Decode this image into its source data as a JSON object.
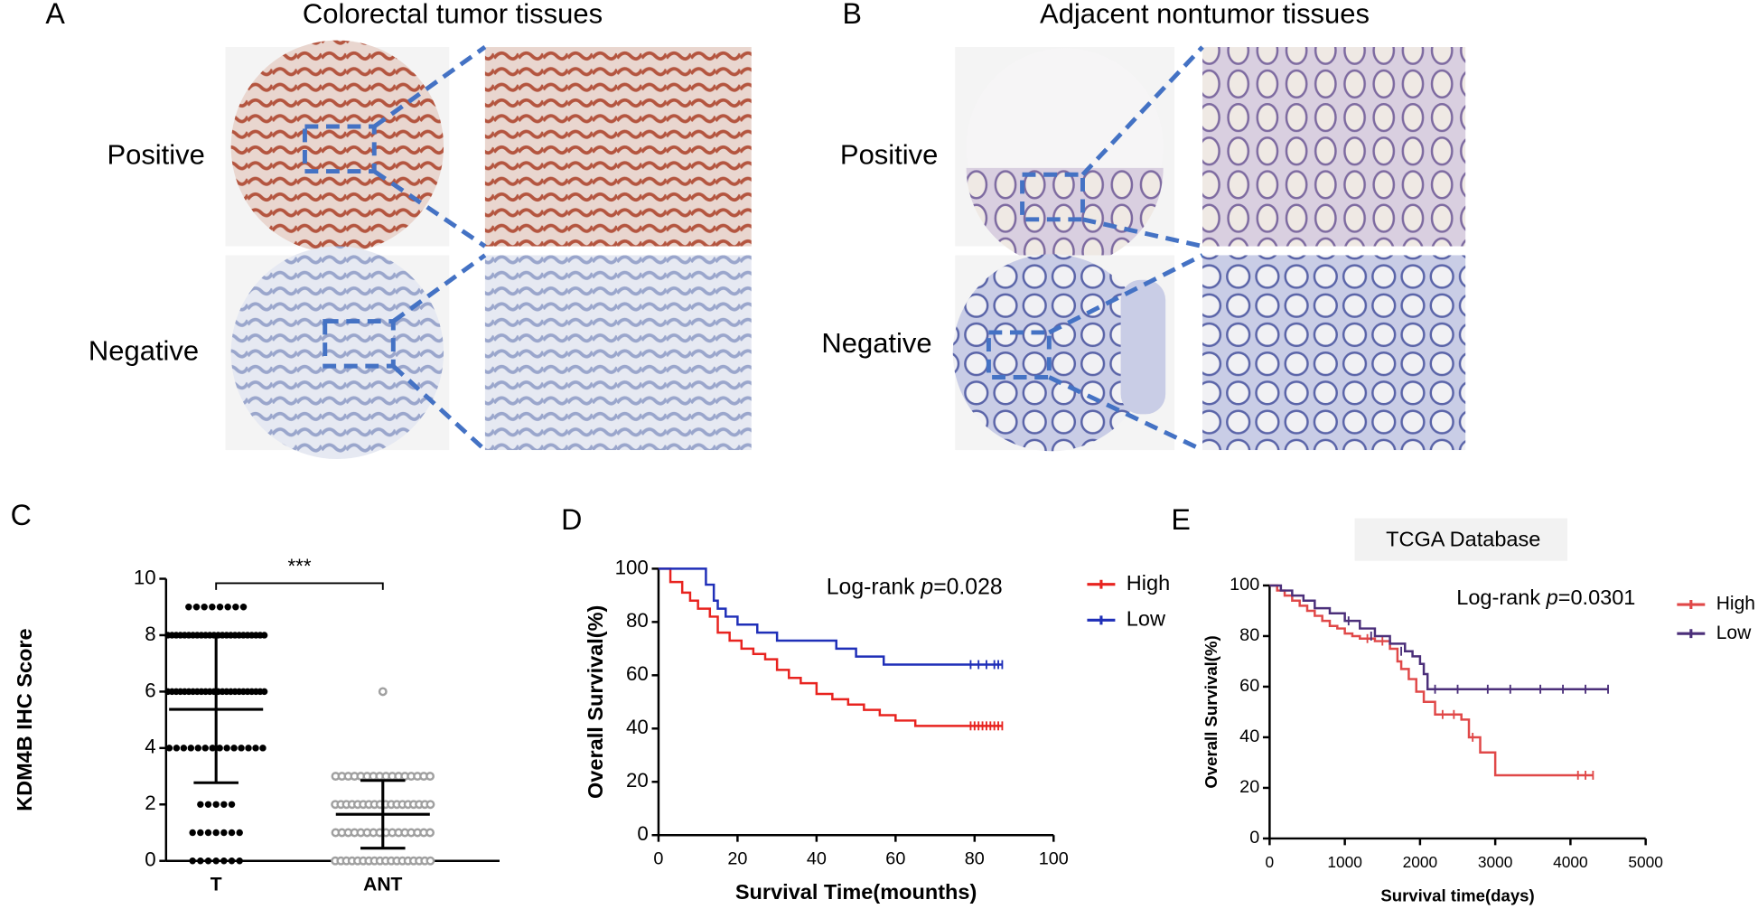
{
  "figure": {
    "panels": [
      {
        "label": "A",
        "title": "Colorectal tumor tissues",
        "rows": [
          "Positive",
          "Negative"
        ]
      },
      {
        "label": "B",
        "title": "Adjacent nontumor tissues",
        "rows": [
          "Positive",
          "Negative"
        ]
      }
    ]
  },
  "chart_data": [
    {
      "type": "dotplot",
      "label": "C",
      "ylabel": "KDM4B IHC Score",
      "categories": [
        "T",
        "ANT"
      ],
      "colors": [
        "#000000",
        "#a0a0a0"
      ],
      "groups": [
        {
          "values": [
            9,
            9,
            9,
            9,
            9,
            9,
            9,
            9,
            8,
            8,
            8,
            8,
            8,
            8,
            8,
            8,
            8,
            8,
            8,
            8,
            8,
            8,
            8,
            8,
            8,
            8,
            8,
            8,
            8,
            8,
            8,
            8,
            6,
            6,
            6,
            6,
            6,
            6,
            6,
            6,
            6,
            6,
            6,
            6,
            6,
            6,
            6,
            6,
            6,
            6,
            6,
            6,
            6,
            6,
            6,
            6,
            4,
            4,
            4,
            4,
            4,
            4,
            4,
            4,
            4,
            4,
            4,
            4,
            4,
            4,
            2,
            2,
            2,
            2,
            2,
            1,
            1,
            1,
            1,
            1,
            1,
            1,
            0,
            0,
            0,
            0,
            0,
            0,
            0
          ],
          "mean": 5.37,
          "sd": 2.6
        },
        {
          "values": [
            6,
            3,
            3,
            3,
            3,
            3,
            3,
            3,
            3,
            3,
            3,
            3,
            3,
            3,
            3,
            3,
            3,
            2,
            2,
            2,
            2,
            2,
            2,
            2,
            2,
            2,
            2,
            2,
            2,
            2,
            2,
            2,
            2,
            2,
            2,
            1,
            1,
            1,
            1,
            1,
            1,
            1,
            1,
            1,
            1,
            1,
            1,
            1,
            1,
            1,
            1,
            0,
            0,
            0,
            0,
            0,
            0,
            0,
            0,
            0,
            0,
            0,
            0,
            0,
            0,
            0,
            0,
            0,
            0
          ],
          "mean": 1.65,
          "sd": 1.2
        }
      ],
      "significance": "***",
      "ylim": [
        0,
        10
      ],
      "yticks": [
        0,
        2,
        4,
        6,
        8,
        10
      ]
    },
    {
      "type": "km",
      "label": "D",
      "xlabel": "Survival Time(mounths)",
      "ylabel": "Overall Survival(%)",
      "annotation": [
        "Log-rank ",
        "p",
        "=0.028"
      ],
      "legend": "right",
      "xlim": [
        0,
        100
      ],
      "xticks": [
        0,
        20,
        40,
        60,
        80,
        100
      ],
      "ylim": [
        0,
        100
      ],
      "yticks": [
        0,
        20,
        40,
        60,
        80,
        100
      ],
      "series": [
        {
          "name": "High",
          "color": "#e8231f",
          "x": [
            0,
            3,
            6,
            8,
            10,
            13,
            15,
            18,
            21,
            24,
            27,
            30,
            33,
            36,
            40,
            44,
            48,
            52,
            56,
            60,
            65,
            87
          ],
          "values": [
            100,
            95,
            91,
            88,
            85,
            82,
            76,
            73,
            70,
            68,
            66,
            62,
            59,
            57,
            53,
            51,
            49,
            47,
            45,
            43,
            41,
            41
          ],
          "censor_x": [
            79,
            80,
            81,
            82,
            83,
            84,
            85,
            86,
            87
          ],
          "censor_values": [
            41,
            41,
            41,
            41,
            41,
            41,
            41,
            41,
            41
          ]
        },
        {
          "name": "Low",
          "color": "#1f2fb8",
          "x": [
            0,
            10,
            12,
            14,
            15,
            17,
            20,
            25,
            30,
            45,
            50,
            57,
            87
          ],
          "values": [
            100,
            100,
            94,
            88,
            85,
            82,
            79,
            76,
            73,
            70,
            67,
            64,
            64
          ],
          "censor_x": [
            79,
            81,
            83,
            85,
            86,
            87
          ],
          "censor_values": [
            64,
            64,
            64,
            64,
            64,
            64
          ]
        }
      ]
    },
    {
      "type": "km",
      "label": "E",
      "title": "TCGA Database",
      "xlabel": "Survival time(days)",
      "ylabel": "Overall Survival(%)",
      "annotation": [
        "Log-rank ",
        "p",
        "=0.0301"
      ],
      "legend": "right",
      "xlim": [
        0,
        5000
      ],
      "xticks": [
        0,
        1000,
        2000,
        3000,
        4000,
        5000
      ],
      "ylim": [
        0,
        100
      ],
      "yticks": [
        0,
        20,
        40,
        60,
        80,
        100
      ],
      "series": [
        {
          "name": "High",
          "color": "#e04848",
          "x": [
            0,
            100,
            200,
            300,
            400,
            500,
            600,
            700,
            800,
            900,
            1000,
            1100,
            1200,
            1400,
            1600,
            1700,
            1750,
            1850,
            1950,
            2050,
            2200,
            2550,
            2650,
            2800,
            3000,
            4300
          ],
          "values": [
            100,
            98,
            96,
            94,
            92,
            90,
            88,
            86,
            84,
            83,
            81,
            80,
            79,
            78,
            75,
            70,
            67,
            63,
            58,
            54,
            49,
            47,
            40,
            34,
            25,
            25
          ],
          "censor_x": [
            1300,
            1500,
            2300,
            2450,
            2700,
            4100,
            4200,
            4300
          ],
          "censor_values": [
            79,
            78,
            49,
            49,
            40,
            25,
            25,
            25
          ]
        },
        {
          "name": "Low",
          "color": "#4b2f7a",
          "x": [
            0,
            150,
            300,
            450,
            600,
            800,
            1000,
            1200,
            1400,
            1600,
            1800,
            1900,
            2000,
            2050,
            2100,
            4500
          ],
          "values": [
            100,
            98,
            96,
            94,
            91,
            89,
            86,
            83,
            80,
            77,
            74,
            72,
            69,
            65,
            59,
            59
          ],
          "censor_x": [
            1050,
            1350,
            1750,
            2200,
            2500,
            2900,
            3200,
            3600,
            3900,
            4200,
            4500
          ],
          "censor_values": [
            86,
            80,
            74,
            59,
            59,
            59,
            59,
            59,
            59,
            59,
            59
          ]
        }
      ]
    }
  ]
}
